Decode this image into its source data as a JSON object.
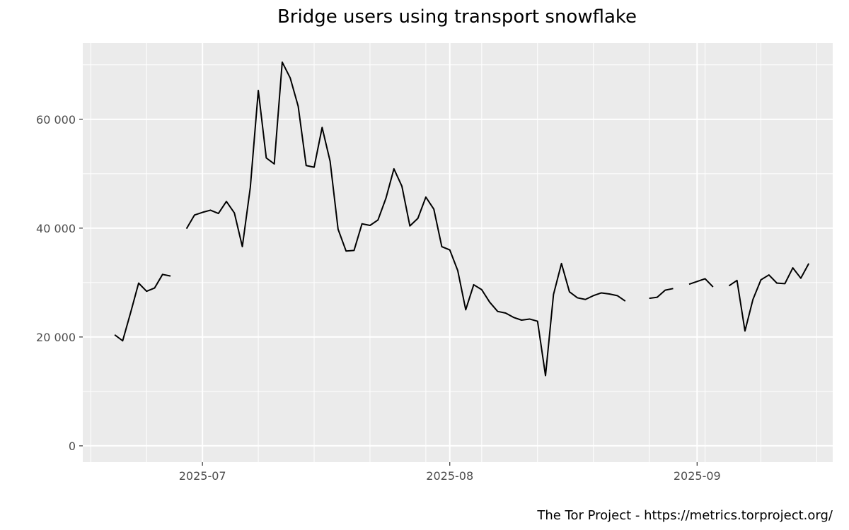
{
  "chart_data": {
    "type": "line",
    "title": "Bridge users using transport snowflake",
    "caption": "The Tor Project - https://metrics.torproject.org/",
    "xlabel": "",
    "ylabel": "",
    "x_axis": {
      "type": "date",
      "range": [
        "2025-06-16",
        "2025-09-18"
      ],
      "major_ticks": [
        "2025-07-01",
        "2025-08-01",
        "2025-09-01"
      ],
      "major_tick_labels": [
        "2025-07",
        "2025-08",
        "2025-09"
      ]
    },
    "y_axis": {
      "range": [
        -3000,
        74000
      ],
      "major_ticks": [
        0,
        20000,
        40000,
        60000
      ],
      "major_tick_labels": [
        "0",
        "20 000",
        "40 000",
        "60 000"
      ]
    },
    "grid": true,
    "legend": "none",
    "line_color": "#000000",
    "panel_color": "#ebebeb",
    "series": [
      {
        "points": [
          [
            "2025-06-20",
            20400
          ],
          [
            "2025-06-21",
            19300
          ],
          [
            "2025-06-22",
            24500
          ],
          [
            "2025-06-23",
            29900
          ],
          [
            "2025-06-24",
            28400
          ],
          [
            "2025-06-25",
            29000
          ],
          [
            "2025-06-26",
            31500
          ],
          [
            "2025-06-27",
            31200
          ],
          [
            "2025-06-28",
            null
          ],
          [
            "2025-06-29",
            39900
          ],
          [
            "2025-06-30",
            42400
          ],
          [
            "2025-07-01",
            42900
          ],
          [
            "2025-07-02",
            43300
          ],
          [
            "2025-07-03",
            42700
          ],
          [
            "2025-07-04",
            44900
          ],
          [
            "2025-07-05",
            42800
          ],
          [
            "2025-07-06",
            36600
          ],
          [
            "2025-07-07",
            47500
          ],
          [
            "2025-07-08",
            65300
          ],
          [
            "2025-07-09",
            52900
          ],
          [
            "2025-07-10",
            51800
          ],
          [
            "2025-07-11",
            70500
          ],
          [
            "2025-07-12",
            67600
          ],
          [
            "2025-07-13",
            62400
          ],
          [
            "2025-07-14",
            51500
          ],
          [
            "2025-07-15",
            51200
          ],
          [
            "2025-07-16",
            58500
          ],
          [
            "2025-07-17",
            52300
          ],
          [
            "2025-07-18",
            39800
          ],
          [
            "2025-07-19",
            35800
          ],
          [
            "2025-07-20",
            35900
          ],
          [
            "2025-07-21",
            40800
          ],
          [
            "2025-07-22",
            40500
          ],
          [
            "2025-07-23",
            41500
          ],
          [
            "2025-07-24",
            45500
          ],
          [
            "2025-07-25",
            50900
          ],
          [
            "2025-07-26",
            47700
          ],
          [
            "2025-07-27",
            40400
          ],
          [
            "2025-07-28",
            41800
          ],
          [
            "2025-07-29",
            45700
          ],
          [
            "2025-07-30",
            43500
          ],
          [
            "2025-07-31",
            36600
          ],
          [
            "2025-08-01",
            36000
          ],
          [
            "2025-08-02",
            32200
          ],
          [
            "2025-08-03",
            25000
          ],
          [
            "2025-08-04",
            29600
          ],
          [
            "2025-08-05",
            28700
          ],
          [
            "2025-08-06",
            26400
          ],
          [
            "2025-08-07",
            24700
          ],
          [
            "2025-08-08",
            24400
          ],
          [
            "2025-08-09",
            23600
          ],
          [
            "2025-08-10",
            23100
          ],
          [
            "2025-08-11",
            23300
          ],
          [
            "2025-08-12",
            22900
          ],
          [
            "2025-08-13",
            12900
          ],
          [
            "2025-08-14",
            27800
          ],
          [
            "2025-08-15",
            33500
          ],
          [
            "2025-08-16",
            28300
          ],
          [
            "2025-08-17",
            27200
          ],
          [
            "2025-08-18",
            26900
          ],
          [
            "2025-08-19",
            27600
          ],
          [
            "2025-08-20",
            28100
          ],
          [
            "2025-08-21",
            27900
          ],
          [
            "2025-08-22",
            27600
          ],
          [
            "2025-08-23",
            26600
          ],
          [
            "2025-08-24",
            null
          ],
          [
            "2025-08-25",
            null
          ],
          [
            "2025-08-26",
            27100
          ],
          [
            "2025-08-27",
            27300
          ],
          [
            "2025-08-28",
            28600
          ],
          [
            "2025-08-29",
            28900
          ],
          [
            "2025-08-30",
            null
          ],
          [
            "2025-08-31",
            29700
          ],
          [
            "2025-09-01",
            30200
          ],
          [
            "2025-09-02",
            30700
          ],
          [
            "2025-09-03",
            29200
          ],
          [
            "2025-09-04",
            null
          ],
          [
            "2025-09-05",
            29400
          ],
          [
            "2025-09-06",
            30400
          ],
          [
            "2025-09-07",
            21100
          ],
          [
            "2025-09-08",
            26900
          ],
          [
            "2025-09-09",
            30500
          ],
          [
            "2025-09-10",
            31400
          ],
          [
            "2025-09-11",
            29900
          ],
          [
            "2025-09-12",
            29800
          ],
          [
            "2025-09-13",
            32700
          ],
          [
            "2025-09-14",
            30800
          ],
          [
            "2025-09-15",
            33500
          ]
        ]
      }
    ]
  }
}
